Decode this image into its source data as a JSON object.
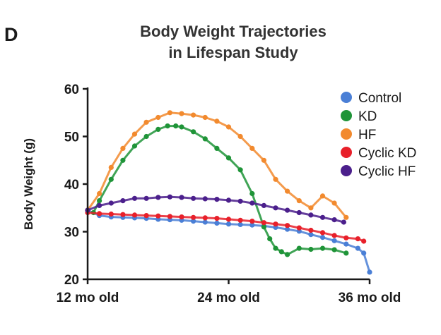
{
  "panel_label": "D",
  "chart_data": {
    "type": "scatter",
    "title_lines": [
      "Body Weight Trajectories",
      "in Lifespan Study"
    ],
    "xlabel": "",
    "ylabel": "Body Weight (g)",
    "xlim": [
      12,
      36
    ],
    "ylim": [
      20,
      60
    ],
    "x_ticks": [
      {
        "value": 12,
        "label": "12 mo old"
      },
      {
        "value": 24,
        "label": "24 mo old"
      },
      {
        "value": 36,
        "label": "36 mo old"
      }
    ],
    "y_ticks": [
      20,
      30,
      40,
      50,
      60
    ],
    "legend_position": "top-right",
    "series": [
      {
        "name": "Control",
        "color": "#4a7fd6",
        "x": [
          12,
          13,
          14,
          15,
          16,
          17,
          18,
          19,
          20,
          21,
          22,
          23,
          24,
          25,
          26,
          27,
          28,
          29,
          30,
          31,
          32,
          33,
          34,
          35,
          35.5,
          36
        ],
        "y": [
          34.5,
          33.4,
          33.1,
          33.0,
          32.9,
          32.8,
          32.6,
          32.5,
          32.4,
          32.2,
          32.0,
          31.8,
          31.6,
          31.5,
          31.4,
          31.2,
          30.9,
          30.5,
          30.1,
          29.4,
          28.8,
          28.1,
          27.4,
          26.5,
          25.5,
          21.5
        ]
      },
      {
        "name": "KD",
        "color": "#1f9438",
        "x": [
          12.5,
          13,
          14,
          15,
          16,
          17,
          18,
          18.8,
          19.5,
          20,
          21,
          22,
          23,
          24,
          25,
          26,
          27,
          27.5,
          28,
          28.5,
          29,
          30,
          31,
          32,
          33,
          34
        ],
        "y": [
          34.0,
          36.5,
          41.0,
          45.0,
          48.0,
          50.0,
          51.5,
          52.2,
          52.2,
          52.0,
          51.0,
          49.5,
          47.5,
          45.5,
          43.0,
          38.0,
          31.0,
          28.5,
          26.5,
          25.8,
          25.2,
          26.5,
          26.3,
          26.5,
          26.2,
          25.5
        ]
      },
      {
        "name": "HF",
        "color": "#f28a2e",
        "x": [
          12,
          13,
          14,
          15,
          16,
          17,
          18,
          19,
          20,
          21,
          22,
          23,
          24,
          25,
          26,
          27,
          28,
          29,
          30,
          31,
          32,
          33,
          34
        ],
        "y": [
          34.5,
          38.0,
          43.5,
          47.5,
          50.5,
          53.0,
          54.0,
          55.0,
          54.8,
          54.5,
          54.0,
          53.2,
          52.0,
          50.0,
          47.5,
          45.0,
          41.0,
          38.5,
          36.5,
          35.0,
          37.5,
          36.0,
          33.0
        ]
      },
      {
        "name": "Cyclic KD",
        "color": "#e8202a",
        "x": [
          12,
          13,
          14,
          15,
          16,
          17,
          18,
          19,
          20,
          21,
          22,
          23,
          24,
          25,
          26,
          27,
          28,
          29,
          30,
          31,
          32,
          33,
          34,
          35,
          35.5
        ],
        "y": [
          34.0,
          33.8,
          33.7,
          33.6,
          33.5,
          33.4,
          33.3,
          33.2,
          33.1,
          33.0,
          32.9,
          32.8,
          32.6,
          32.4,
          32.2,
          31.9,
          31.6,
          31.3,
          30.8,
          30.3,
          29.8,
          29.2,
          28.7,
          28.5,
          28.0
        ]
      },
      {
        "name": "Cyclic HF",
        "color": "#4b1f8c",
        "x": [
          12,
          13,
          14,
          15,
          16,
          17,
          18,
          19,
          20,
          21,
          22,
          23,
          24,
          25,
          26,
          27,
          28,
          29,
          30,
          31,
          32,
          33,
          33.8
        ],
        "y": [
          34.5,
          35.5,
          36.0,
          36.5,
          37.0,
          37.0,
          37.2,
          37.3,
          37.2,
          37.0,
          36.9,
          36.8,
          36.6,
          36.4,
          36.0,
          35.5,
          35.0,
          34.5,
          34.0,
          33.5,
          33.0,
          32.5,
          32.0
        ]
      }
    ]
  }
}
